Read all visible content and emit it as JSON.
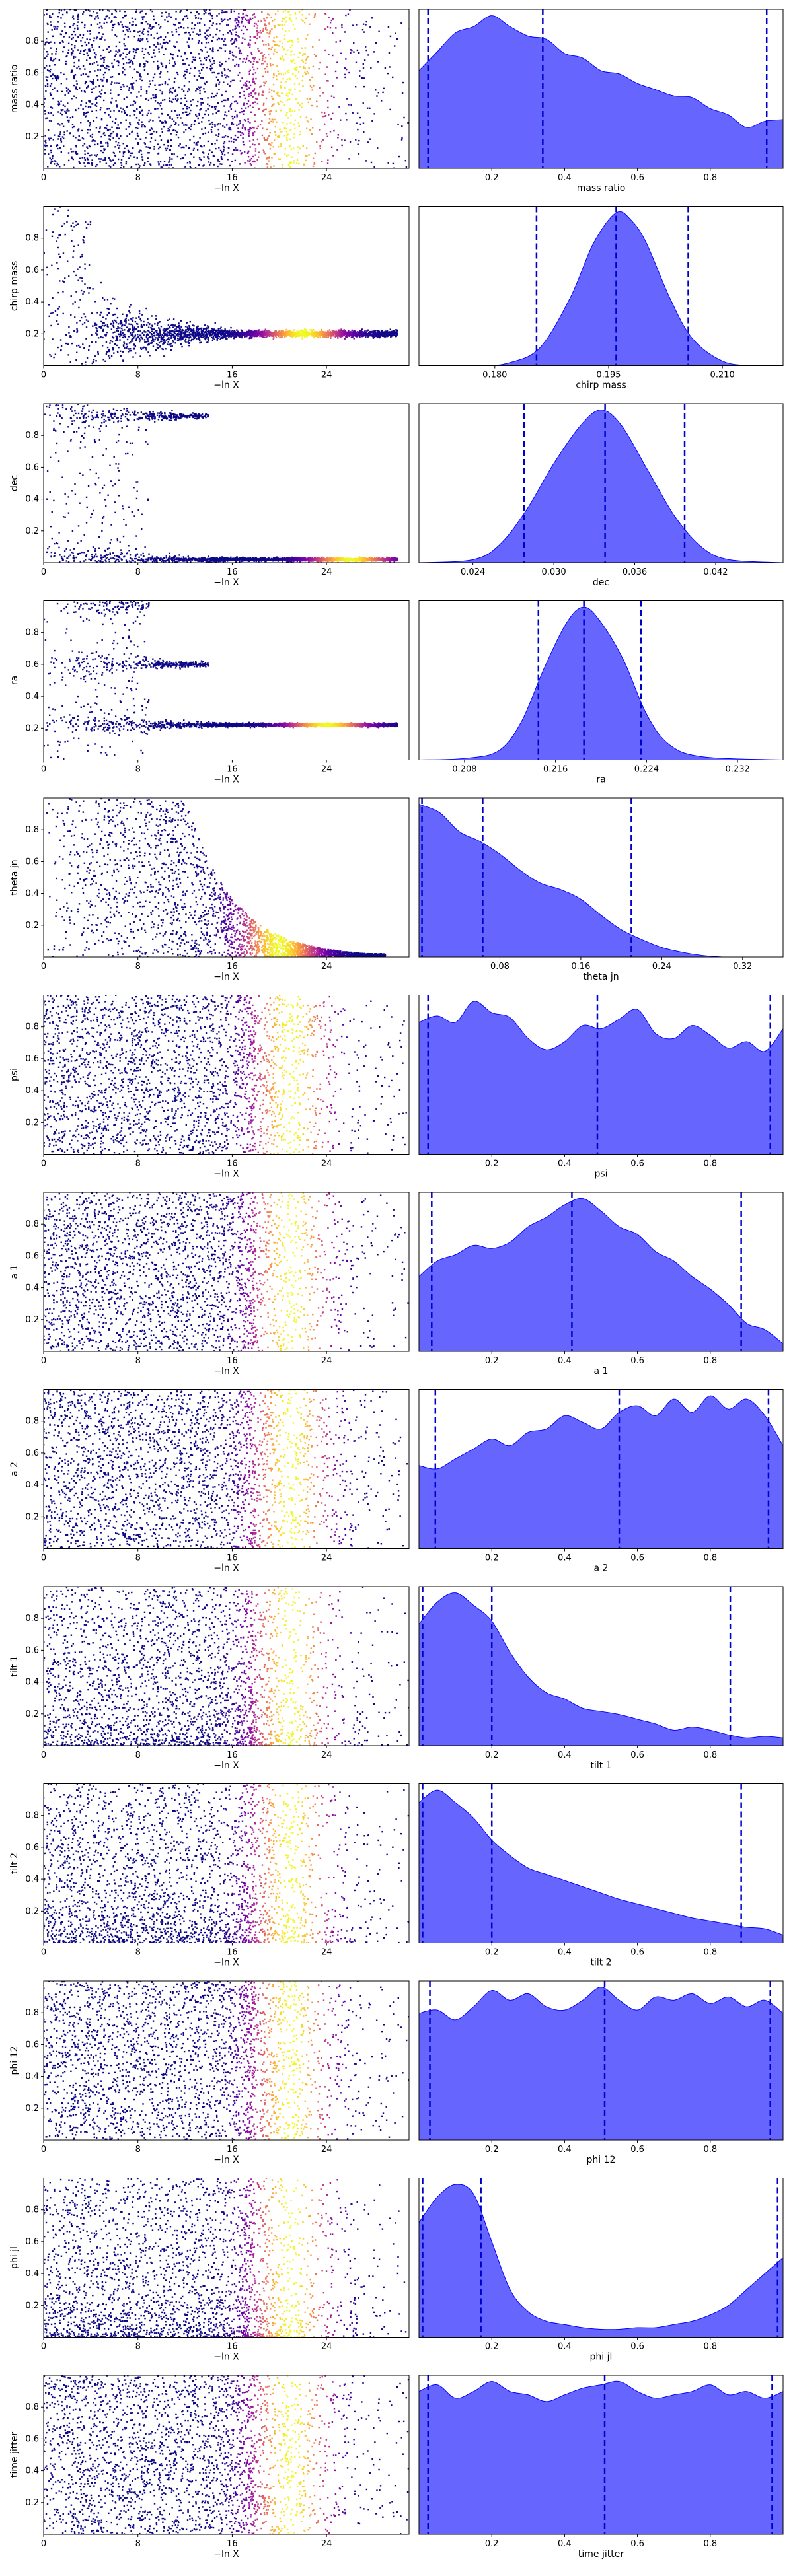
{
  "colors": {
    "kde_fill": "#6666ff",
    "kde_edge": "#0000ff",
    "quantile_line": "#0000cc",
    "scatter_colormap": "plasma",
    "axes": "#000000"
  },
  "chart_data": [
    {
      "type": "scatter",
      "title": "",
      "xlabel": "−ln X",
      "ylabel": "mass ratio",
      "xlim": [
        0,
        31
      ],
      "ylim": [
        0,
        1
      ],
      "x_ticks": [
        0,
        8,
        16,
        24
      ],
      "y_ticks": [
        0.2,
        0.4,
        0.6,
        0.8
      ],
      "colormap": "plasma",
      "color_peak_x": 21,
      "shape": "band"
    },
    {
      "type": "area",
      "title": "",
      "xlabel": "mass ratio",
      "xlim": [
        0,
        1
      ],
      "x_ticks": [
        0.2,
        0.4,
        0.6,
        0.8
      ],
      "quantile_lines": [
        0.025,
        0.34,
        0.955
      ],
      "x": [
        0,
        0.05,
        0.1,
        0.15,
        0.2,
        0.25,
        0.3,
        0.35,
        0.4,
        0.45,
        0.5,
        0.55,
        0.6,
        0.65,
        0.7,
        0.75,
        0.8,
        0.85,
        0.9,
        0.95,
        1.0
      ],
      "density": [
        0.62,
        0.74,
        0.86,
        0.9,
        0.97,
        0.9,
        0.84,
        0.82,
        0.73,
        0.7,
        0.62,
        0.6,
        0.54,
        0.5,
        0.46,
        0.45,
        0.38,
        0.34,
        0.26,
        0.3,
        0.31
      ]
    },
    {
      "type": "scatter",
      "title": "",
      "xlabel": "−ln X",
      "ylabel": "chirp mass",
      "xlim": [
        0,
        31
      ],
      "ylim": [
        0,
        1
      ],
      "x_ticks": [
        0,
        8,
        16,
        24
      ],
      "y_ticks": [
        0.2,
        0.4,
        0.6,
        0.8
      ],
      "colormap": "plasma",
      "color_peak_x": 22,
      "shape": "converge",
      "converge_y": 0.2
    },
    {
      "type": "area",
      "title": "",
      "xlabel": "chirp mass",
      "xlim": [
        0.17,
        0.218
      ],
      "x_ticks": [
        0.18,
        0.195,
        0.21
      ],
      "tick_decimals": 3,
      "quantile_lines": [
        0.1855,
        0.196,
        0.2055
      ],
      "x": [
        0.17,
        0.178,
        0.182,
        0.186,
        0.19,
        0.193,
        0.196,
        0.198,
        0.2,
        0.203,
        0.206,
        0.21,
        0.214,
        0.218
      ],
      "density": [
        0,
        0.0,
        0.02,
        0.12,
        0.45,
        0.8,
        1.0,
        0.95,
        0.8,
        0.45,
        0.18,
        0.03,
        0,
        0
      ]
    },
    {
      "type": "scatter",
      "title": "",
      "xlabel": "−ln X",
      "ylabel": "dec",
      "xlim": [
        0,
        31
      ],
      "ylim": [
        0,
        1
      ],
      "x_ticks": [
        0,
        8,
        16,
        24
      ],
      "y_ticks": [
        0.2,
        0.4,
        0.6,
        0.8
      ],
      "colormap": "plasma",
      "color_peak_x": 26,
      "shape": "split",
      "branches": [
        {
          "y": 0.02,
          "until": 30
        },
        {
          "y": 0.92,
          "until": 14
        }
      ]
    },
    {
      "type": "area",
      "title": "",
      "xlabel": "dec",
      "xlim": [
        0.02,
        0.047
      ],
      "x_ticks": [
        0.024,
        0.03,
        0.036,
        0.042
      ],
      "tick_decimals": 3,
      "quantile_lines": [
        0.0278,
        0.0338,
        0.0397
      ],
      "x": [
        0.02,
        0.024,
        0.026,
        0.028,
        0.03,
        0.032,
        0.0335,
        0.035,
        0.037,
        0.039,
        0.041,
        0.043,
        0.047
      ],
      "density": [
        0,
        0.02,
        0.12,
        0.35,
        0.65,
        0.9,
        1.0,
        0.9,
        0.6,
        0.3,
        0.1,
        0.02,
        0
      ]
    },
    {
      "type": "scatter",
      "title": "",
      "xlabel": "−ln X",
      "ylabel": "ra",
      "xlim": [
        0,
        31
      ],
      "ylim": [
        0,
        1
      ],
      "x_ticks": [
        0,
        8,
        16,
        24
      ],
      "y_ticks": [
        0.2,
        0.4,
        0.6,
        0.8
      ],
      "colormap": "plasma",
      "color_peak_x": 24,
      "shape": "split",
      "branches": [
        {
          "y": 0.22,
          "until": 30
        },
        {
          "y": 0.6,
          "until": 14
        },
        {
          "y": 0.97,
          "until": 9
        }
      ]
    },
    {
      "type": "area",
      "title": "",
      "xlabel": "ra",
      "xlim": [
        0.204,
        0.236
      ],
      "x_ticks": [
        0.208,
        0.216,
        0.224,
        0.232
      ],
      "tick_decimals": 3,
      "quantile_lines": [
        0.2145,
        0.2185,
        0.2235
      ],
      "x": [
        0.204,
        0.208,
        0.211,
        0.213,
        0.215,
        0.217,
        0.2185,
        0.22,
        0.222,
        0.224,
        0.226,
        0.229,
        0.236
      ],
      "density": [
        0,
        0.01,
        0.06,
        0.25,
        0.6,
        0.9,
        1.0,
        0.9,
        0.65,
        0.3,
        0.1,
        0.02,
        0
      ]
    },
    {
      "type": "scatter",
      "title": "",
      "xlabel": "−ln X",
      "ylabel": "theta jn",
      "xlim": [
        0,
        31
      ],
      "ylim": [
        0,
        1
      ],
      "x_ticks": [
        0,
        8,
        16,
        24
      ],
      "y_ticks": [
        0.2,
        0.4,
        0.6,
        0.8
      ],
      "colormap": "plasma",
      "color_peak_x": 20,
      "shape": "decay"
    },
    {
      "type": "area",
      "title": "",
      "xlabel": "theta jn",
      "xlim": [
        0,
        0.36
      ],
      "x_ticks": [
        0.08,
        0.16,
        0.24,
        0.32
      ],
      "quantile_lines": [
        0.003,
        0.063,
        0.21
      ],
      "x": [
        0,
        0.02,
        0.04,
        0.06,
        0.08,
        0.1,
        0.12,
        0.14,
        0.16,
        0.18,
        0.2,
        0.22,
        0.24,
        0.26,
        0.28,
        0.3,
        0.32,
        0.34,
        0.36
      ],
      "density": [
        0.95,
        0.9,
        0.78,
        0.72,
        0.64,
        0.54,
        0.46,
        0.42,
        0.36,
        0.26,
        0.17,
        0.11,
        0.06,
        0.03,
        0.01,
        0,
        0,
        0,
        0
      ]
    },
    {
      "type": "scatter",
      "title": "",
      "xlabel": "−ln X",
      "ylabel": "psi",
      "xlim": [
        0,
        31
      ],
      "ylim": [
        0,
        1
      ],
      "x_ticks": [
        0,
        8,
        16,
        24
      ],
      "y_ticks": [
        0.2,
        0.4,
        0.6,
        0.8
      ],
      "colormap": "plasma",
      "color_peak_x": 21,
      "shape": "band"
    },
    {
      "type": "area",
      "title": "",
      "xlabel": "psi",
      "xlim": [
        0,
        1
      ],
      "x_ticks": [
        0.2,
        0.4,
        0.6,
        0.8
      ],
      "quantile_lines": [
        0.025,
        0.49,
        0.965
      ],
      "x": [
        0,
        0.05,
        0.1,
        0.15,
        0.2,
        0.25,
        0.3,
        0.35,
        0.4,
        0.45,
        0.5,
        0.55,
        0.6,
        0.65,
        0.7,
        0.75,
        0.8,
        0.85,
        0.9,
        0.95,
        1.0
      ],
      "density": [
        0.82,
        0.86,
        0.82,
        0.95,
        0.88,
        0.85,
        0.72,
        0.65,
        0.7,
        0.8,
        0.78,
        0.84,
        0.9,
        0.75,
        0.72,
        0.8,
        0.74,
        0.66,
        0.7,
        0.64,
        0.78
      ]
    },
    {
      "type": "scatter",
      "title": "",
      "xlabel": "−ln X",
      "ylabel": "a 1",
      "xlim": [
        0,
        31
      ],
      "ylim": [
        0,
        1
      ],
      "x_ticks": [
        0,
        8,
        16,
        24
      ],
      "y_ticks": [
        0.2,
        0.4,
        0.6,
        0.8
      ],
      "colormap": "plasma",
      "color_peak_x": 21,
      "shape": "band"
    },
    {
      "type": "area",
      "title": "",
      "xlabel": "a 1",
      "xlim": [
        0,
        1
      ],
      "x_ticks": [
        0.2,
        0.4,
        0.6,
        0.8
      ],
      "quantile_lines": [
        0.035,
        0.42,
        0.885
      ],
      "x": [
        0,
        0.05,
        0.1,
        0.15,
        0.2,
        0.25,
        0.3,
        0.35,
        0.4,
        0.45,
        0.5,
        0.55,
        0.6,
        0.65,
        0.7,
        0.75,
        0.8,
        0.85,
        0.9,
        0.95,
        1.0
      ],
      "density": [
        0.48,
        0.58,
        0.62,
        0.68,
        0.66,
        0.7,
        0.8,
        0.86,
        0.94,
        0.98,
        0.9,
        0.8,
        0.75,
        0.64,
        0.58,
        0.48,
        0.4,
        0.3,
        0.18,
        0.14,
        0.05
      ]
    },
    {
      "type": "scatter",
      "title": "",
      "xlabel": "−ln X",
      "ylabel": "a 2",
      "xlim": [
        0,
        31
      ],
      "ylim": [
        0,
        1
      ],
      "x_ticks": [
        0,
        8,
        16,
        24
      ],
      "y_ticks": [
        0.2,
        0.4,
        0.6,
        0.8
      ],
      "colormap": "plasma",
      "color_peak_x": 21,
      "shape": "band"
    },
    {
      "type": "area",
      "title": "",
      "xlabel": "a 2",
      "xlim": [
        0,
        1
      ],
      "x_ticks": [
        0.2,
        0.4,
        0.6,
        0.8
      ],
      "quantile_lines": [
        0.045,
        0.55,
        0.96
      ],
      "x": [
        0,
        0.05,
        0.1,
        0.15,
        0.2,
        0.25,
        0.3,
        0.35,
        0.4,
        0.45,
        0.5,
        0.55,
        0.6,
        0.65,
        0.7,
        0.75,
        0.8,
        0.85,
        0.9,
        0.95,
        1.0
      ],
      "density": [
        0.5,
        0.48,
        0.54,
        0.6,
        0.66,
        0.62,
        0.7,
        0.72,
        0.8,
        0.76,
        0.72,
        0.82,
        0.86,
        0.8,
        0.9,
        0.82,
        0.92,
        0.84,
        0.9,
        0.8,
        0.62
      ]
    },
    {
      "type": "scatter",
      "title": "",
      "xlabel": "−ln X",
      "ylabel": "tilt 1",
      "xlim": [
        0,
        31
      ],
      "ylim": [
        0,
        1
      ],
      "x_ticks": [
        0,
        8,
        16,
        24
      ],
      "y_ticks": [
        0.2,
        0.4,
        0.6,
        0.8
      ],
      "colormap": "plasma",
      "color_peak_x": 21,
      "shape": "band_low"
    },
    {
      "type": "area",
      "title": "",
      "xlabel": "tilt 1",
      "xlim": [
        0,
        1
      ],
      "x_ticks": [
        0.2,
        0.4,
        0.6,
        0.8
      ],
      "quantile_lines": [
        0.01,
        0.2,
        0.855
      ],
      "x": [
        0,
        0.05,
        0.1,
        0.15,
        0.2,
        0.25,
        0.3,
        0.35,
        0.4,
        0.45,
        0.5,
        0.55,
        0.6,
        0.65,
        0.7,
        0.75,
        0.8,
        0.85,
        0.9,
        0.95,
        1.0
      ],
      "density": [
        0.78,
        0.92,
        0.98,
        0.9,
        0.8,
        0.6,
        0.44,
        0.34,
        0.3,
        0.24,
        0.22,
        0.2,
        0.17,
        0.14,
        0.1,
        0.12,
        0.1,
        0.07,
        0.05,
        0.06,
        0.05
      ]
    },
    {
      "type": "scatter",
      "title": "",
      "xlabel": "−ln X",
      "ylabel": "tilt 2",
      "xlim": [
        0,
        31
      ],
      "ylim": [
        0,
        1
      ],
      "x_ticks": [
        0,
        8,
        16,
        24
      ],
      "y_ticks": [
        0.2,
        0.4,
        0.6,
        0.8
      ],
      "colormap": "plasma",
      "color_peak_x": 21,
      "shape": "band_low"
    },
    {
      "type": "area",
      "title": "",
      "xlabel": "tilt 2",
      "xlim": [
        0,
        1
      ],
      "x_ticks": [
        0.2,
        0.4,
        0.6,
        0.8
      ],
      "quantile_lines": [
        0.01,
        0.2,
        0.885
      ],
      "x": [
        0,
        0.05,
        0.1,
        0.15,
        0.2,
        0.25,
        0.3,
        0.35,
        0.4,
        0.45,
        0.5,
        0.55,
        0.6,
        0.65,
        0.7,
        0.75,
        0.8,
        0.85,
        0.9,
        0.95,
        1.0
      ],
      "density": [
        0.9,
        0.98,
        0.9,
        0.8,
        0.66,
        0.56,
        0.48,
        0.44,
        0.4,
        0.36,
        0.32,
        0.28,
        0.25,
        0.22,
        0.19,
        0.16,
        0.14,
        0.12,
        0.1,
        0.09,
        0.05
      ]
    },
    {
      "type": "scatter",
      "title": "",
      "xlabel": "−ln X",
      "ylabel": "phi 12",
      "xlim": [
        0,
        31
      ],
      "ylim": [
        0,
        1
      ],
      "x_ticks": [
        0,
        8,
        16,
        24
      ],
      "y_ticks": [
        0.2,
        0.4,
        0.6,
        0.8
      ],
      "colormap": "plasma",
      "color_peak_x": 21,
      "shape": "band"
    },
    {
      "type": "area",
      "title": "",
      "xlabel": "phi 12",
      "xlim": [
        0,
        1
      ],
      "x_ticks": [
        0.2,
        0.4,
        0.6,
        0.8
      ],
      "quantile_lines": [
        0.03,
        0.51,
        0.965
      ],
      "x": [
        0,
        0.05,
        0.1,
        0.15,
        0.2,
        0.25,
        0.3,
        0.35,
        0.4,
        0.45,
        0.5,
        0.55,
        0.6,
        0.65,
        0.7,
        0.75,
        0.8,
        0.85,
        0.9,
        0.95,
        1.0
      ],
      "density": [
        0.78,
        0.8,
        0.74,
        0.82,
        0.92,
        0.86,
        0.9,
        0.82,
        0.8,
        0.86,
        0.94,
        0.86,
        0.8,
        0.88,
        0.86,
        0.9,
        0.84,
        0.88,
        0.82,
        0.86,
        0.78
      ]
    },
    {
      "type": "scatter",
      "title": "",
      "xlabel": "−ln X",
      "ylabel": "phi jl",
      "xlim": [
        0,
        31
      ],
      "ylim": [
        0,
        1
      ],
      "x_ticks": [
        0,
        8,
        16,
        24
      ],
      "y_ticks": [
        0.2,
        0.4,
        0.6,
        0.8
      ],
      "colormap": "plasma",
      "color_peak_x": 21,
      "shape": "band_low"
    },
    {
      "type": "area",
      "title": "",
      "xlabel": "phi jl",
      "xlim": [
        0,
        1
      ],
      "x_ticks": [
        0.2,
        0.4,
        0.6,
        0.8
      ],
      "quantile_lines": [
        0.01,
        0.17,
        0.985
      ],
      "x": [
        0,
        0.05,
        0.1,
        0.15,
        0.2,
        0.25,
        0.3,
        0.35,
        0.4,
        0.45,
        0.5,
        0.55,
        0.6,
        0.65,
        0.7,
        0.75,
        0.8,
        0.85,
        0.9,
        0.95,
        1.0
      ],
      "density": [
        0.72,
        0.88,
        0.96,
        0.9,
        0.6,
        0.3,
        0.16,
        0.1,
        0.08,
        0.06,
        0.05,
        0.05,
        0.06,
        0.06,
        0.08,
        0.1,
        0.14,
        0.2,
        0.3,
        0.4,
        0.5
      ]
    },
    {
      "type": "scatter",
      "title": "",
      "xlabel": "−ln X",
      "ylabel": "time jitter",
      "xlim": [
        0,
        31
      ],
      "ylim": [
        0,
        1
      ],
      "x_ticks": [
        0,
        8,
        16,
        24
      ],
      "y_ticks": [
        0.2,
        0.4,
        0.6,
        0.8
      ],
      "colormap": "plasma",
      "color_peak_x": 21,
      "shape": "band"
    },
    {
      "type": "area",
      "title": "",
      "xlabel": "time jitter",
      "xlim": [
        0,
        1
      ],
      "x_ticks": [
        0.2,
        0.4,
        0.6,
        0.8
      ],
      "quantile_lines": [
        0.025,
        0.51,
        0.97
      ],
      "x": [
        0,
        0.05,
        0.1,
        0.15,
        0.2,
        0.25,
        0.3,
        0.35,
        0.4,
        0.45,
        0.5,
        0.55,
        0.6,
        0.65,
        0.7,
        0.75,
        0.8,
        0.85,
        0.9,
        0.95,
        1.0
      ],
      "density": [
        0.86,
        0.9,
        0.82,
        0.86,
        0.92,
        0.86,
        0.84,
        0.8,
        0.84,
        0.88,
        0.9,
        0.92,
        0.86,
        0.82,
        0.84,
        0.86,
        0.9,
        0.84,
        0.86,
        0.82,
        0.86
      ]
    }
  ]
}
